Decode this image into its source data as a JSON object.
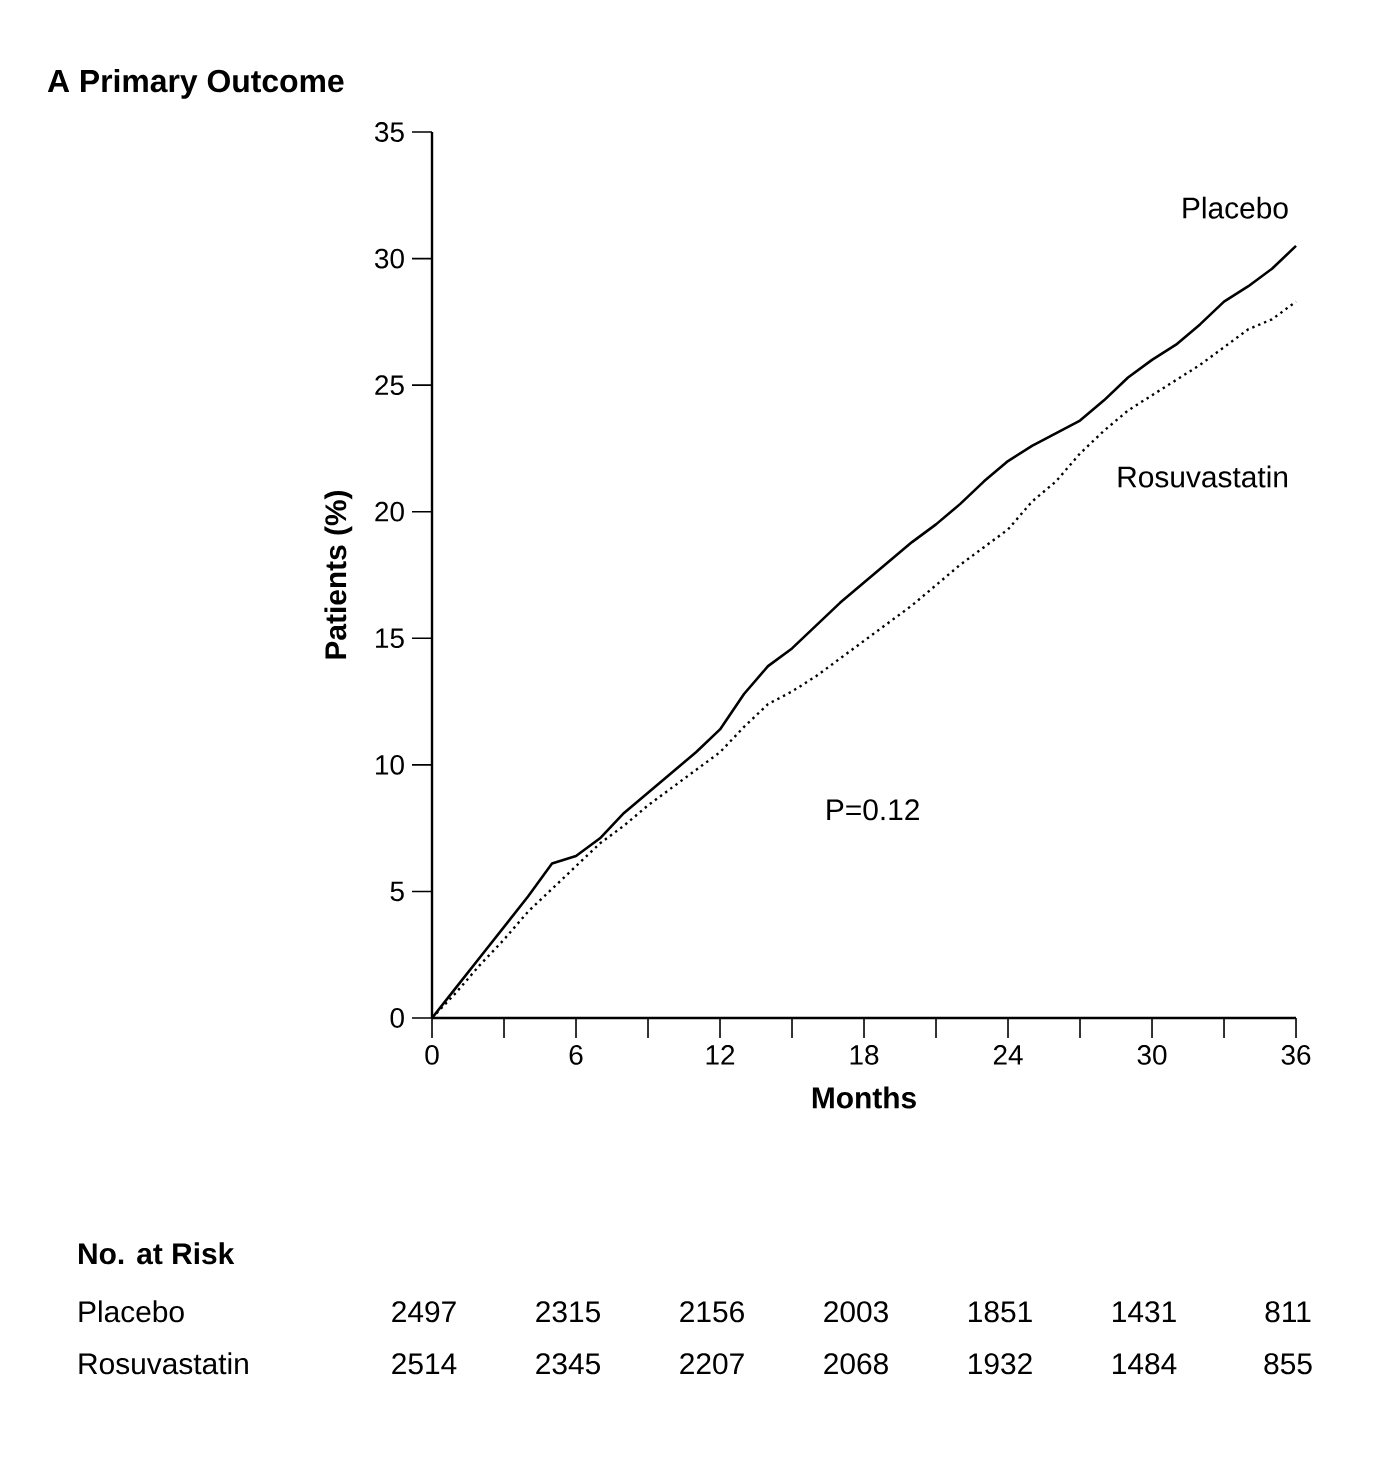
{
  "chart_data": {
    "type": "line",
    "title": "A  Primary Outcome",
    "xlabel": "Months",
    "ylabel": "Patients (%)",
    "xlim": [
      0,
      36
    ],
    "ylim": [
      0,
      35
    ],
    "xticks": [
      0,
      {
        "value": 3,
        "label": null
      },
      6,
      {
        "value": 9,
        "label": null
      },
      12,
      {
        "value": 15,
        "label": null
      },
      18,
      {
        "value": 21,
        "label": null
      },
      24,
      {
        "value": 27,
        "label": null
      },
      30,
      {
        "value": 33,
        "label": null
      },
      36
    ],
    "yticks": [
      0,
      5,
      10,
      15,
      20,
      25,
      30,
      35
    ],
    "grid": false,
    "marker": "none",
    "series": [
      {
        "name": "Placebo",
        "color": "#000000",
        "line_style": "solid",
        "x": [
          0,
          1,
          2,
          3,
          4,
          5,
          6,
          7,
          8,
          9,
          10,
          11,
          12,
          13,
          14,
          15,
          16,
          17,
          18,
          19,
          20,
          21,
          22,
          23,
          24,
          25,
          26,
          27,
          28,
          29,
          30,
          31,
          32,
          33,
          34,
          35,
          36
        ],
        "values": [
          0,
          1.2,
          2.4,
          3.6,
          4.8,
          6.1,
          6.4,
          7.1,
          8.1,
          8.9,
          9.7,
          10.5,
          11.4,
          12.8,
          13.9,
          14.6,
          15.5,
          16.4,
          17.2,
          18.0,
          18.8,
          19.5,
          20.3,
          21.2,
          22.0,
          22.6,
          23.1,
          23.6,
          24.4,
          25.3,
          26.0,
          26.6,
          27.4,
          28.3,
          28.9,
          29.6,
          30.5
        ]
      },
      {
        "name": "Rosuvastatin",
        "color": "#000000",
        "line_style": "dotted",
        "x": [
          0,
          1,
          2,
          3,
          4,
          5,
          6,
          7,
          8,
          9,
          10,
          11,
          12,
          13,
          14,
          15,
          16,
          17,
          18,
          19,
          20,
          21,
          22,
          23,
          24,
          25,
          26,
          27,
          28,
          29,
          30,
          31,
          32,
          33,
          34,
          35,
          36
        ],
        "values": [
          0,
          1.0,
          2.1,
          3.1,
          4.2,
          5.1,
          6.0,
          6.9,
          7.6,
          8.4,
          9.1,
          9.8,
          10.5,
          11.5,
          12.4,
          12.9,
          13.5,
          14.2,
          14.9,
          15.6,
          16.3,
          17.1,
          17.9,
          18.6,
          19.3,
          20.4,
          21.2,
          22.3,
          23.2,
          24.0,
          24.6,
          25.2,
          25.8,
          26.5,
          27.2,
          27.6,
          28.3
        ]
      }
    ],
    "annotations": [
      "P=0.12",
      "No. at Risk",
      "2497",
      "2315",
      "2156",
      "2003",
      "1851",
      "1431",
      "811",
      "2514",
      "2345",
      "2207",
      "2068",
      "1932",
      "1484",
      "855"
    ]
  }
}
